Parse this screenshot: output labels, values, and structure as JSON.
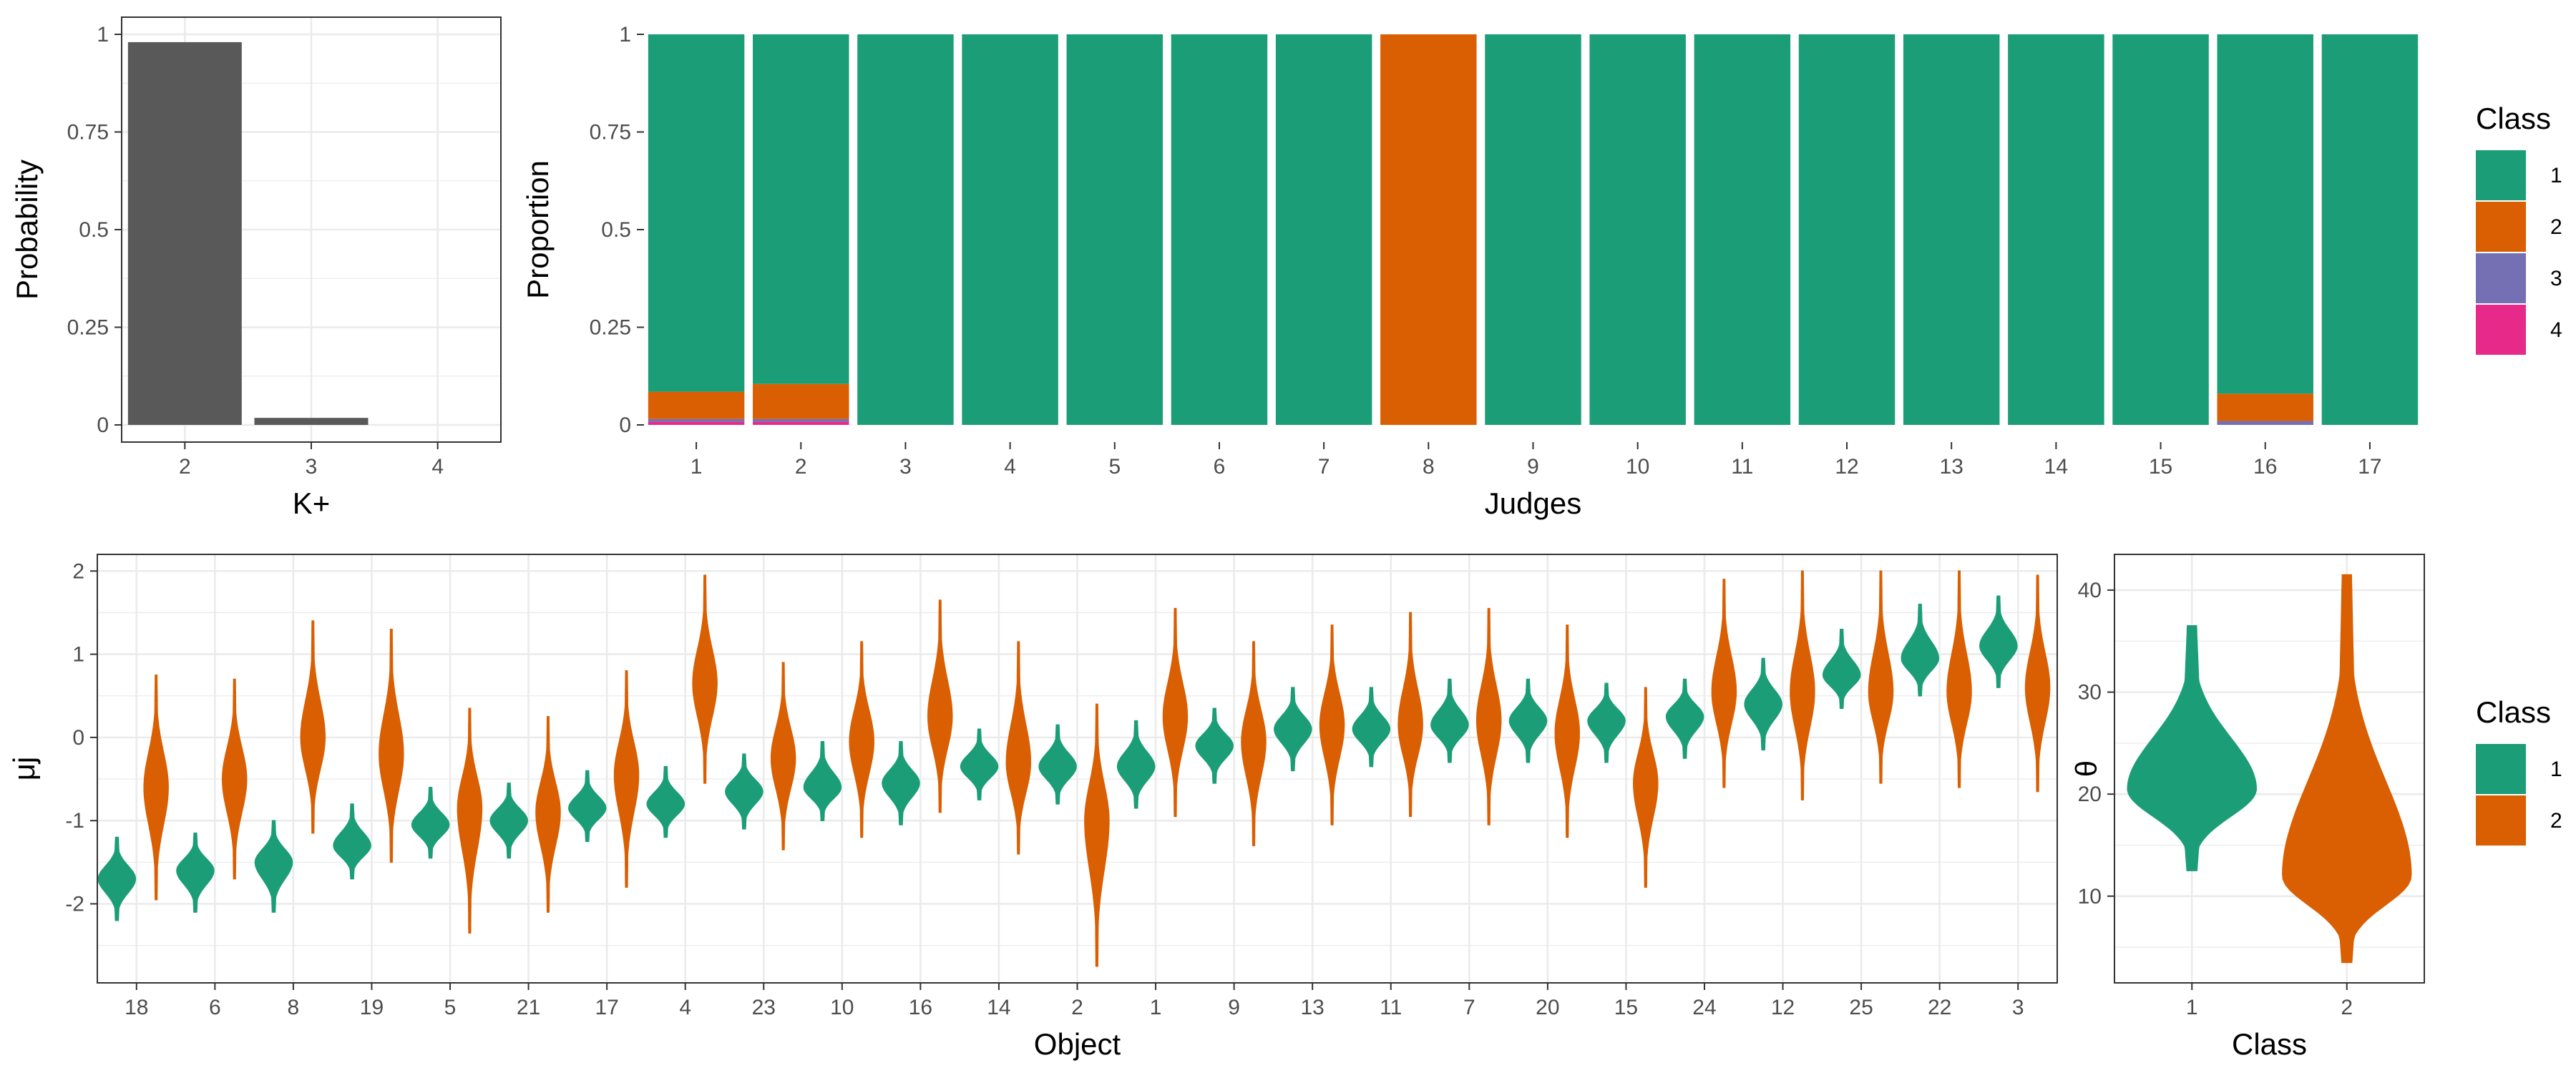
{
  "chart_data": [
    {
      "id": "kplus",
      "type": "bar",
      "xlabel": "K+",
      "ylabel": "Probability",
      "categories": [
        "2",
        "3",
        "4"
      ],
      "values": [
        0.98,
        0.018,
        0.0
      ],
      "ylim": [
        0,
        1
      ],
      "yticks": [
        0,
        0.25,
        0.5,
        0.75,
        1
      ],
      "ytick_labels": [
        "0",
        "0.25",
        "0.5",
        "0.75",
        "1"
      ],
      "grid": true,
      "bar_color": "#595959"
    },
    {
      "id": "judges",
      "type": "bar",
      "stacked": true,
      "xlabel": "Judges",
      "ylabel": "Proportion",
      "categories": [
        "1",
        "2",
        "3",
        "4",
        "5",
        "6",
        "7",
        "8",
        "9",
        "10",
        "11",
        "12",
        "13",
        "14",
        "15",
        "16",
        "17"
      ],
      "series": [
        {
          "name": "1",
          "values": [
            0.915,
            0.895,
            1,
            1,
            1,
            1,
            1,
            0,
            1,
            1,
            1,
            1,
            1,
            1,
            1,
            0.92,
            1
          ]
        },
        {
          "name": "2",
          "values": [
            0.07,
            0.09,
            0,
            0,
            0,
            0,
            0,
            1,
            0,
            0,
            0,
            0,
            0,
            0,
            0,
            0.07,
            0
          ]
        },
        {
          "name": "3",
          "values": [
            0.007,
            0.007,
            0,
            0,
            0,
            0,
            0,
            0,
            0,
            0,
            0,
            0,
            0,
            0,
            0,
            0.01,
            0
          ]
        },
        {
          "name": "4",
          "values": [
            0.008,
            0.008,
            0,
            0,
            0,
            0,
            0,
            0,
            0,
            0,
            0,
            0,
            0,
            0,
            0,
            0,
            0
          ]
        }
      ],
      "ylim": [
        0,
        1
      ],
      "yticks": [
        0,
        0.25,
        0.5,
        0.75,
        1
      ],
      "ytick_labels": [
        "0",
        "0.25",
        "0.5",
        "0.75",
        "1"
      ],
      "grid": false,
      "legend": {
        "title": "Class",
        "placement": "right"
      }
    },
    {
      "id": "objects",
      "type": "violin",
      "xlabel": "Object",
      "ylabel": "μj",
      "categories": [
        "18",
        "6",
        "8",
        "19",
        "5",
        "21",
        "17",
        "4",
        "23",
        "10",
        "16",
        "14",
        "2",
        "1",
        "9",
        "13",
        "11",
        "7",
        "20",
        "15",
        "24",
        "12",
        "25",
        "22",
        "3"
      ],
      "series": [
        {
          "name": "1",
          "center": [
            -1.7,
            -1.6,
            -1.5,
            -1.3,
            -1.05,
            -1.0,
            -0.85,
            -0.8,
            -0.65,
            -0.6,
            -0.55,
            -0.35,
            -0.35,
            -0.35,
            -0.1,
            0.1,
            0.1,
            0.15,
            0.2,
            0.2,
            0.25,
            0.4,
            0.75,
            0.95,
            1.1
          ],
          "min": [
            -2.2,
            -2.1,
            -2.1,
            -1.7,
            -1.45,
            -1.45,
            -1.25,
            -1.2,
            -1.1,
            -1.0,
            -1.05,
            -0.75,
            -0.8,
            -0.85,
            -0.55,
            -0.4,
            -0.35,
            -0.3,
            -0.3,
            -0.3,
            -0.25,
            -0.15,
            0.35,
            0.5,
            0.6
          ],
          "max": [
            -1.2,
            -1.15,
            -1.0,
            -0.8,
            -0.6,
            -0.55,
            -0.4,
            -0.35,
            -0.2,
            -0.05,
            -0.05,
            0.1,
            0.15,
            0.2,
            0.35,
            0.6,
            0.6,
            0.7,
            0.7,
            0.65,
            0.7,
            0.95,
            1.3,
            1.6,
            1.7
          ]
        },
        {
          "name": "2",
          "center": [
            -0.6,
            -0.5,
            0.0,
            -0.2,
            -0.85,
            -0.9,
            -0.45,
            0.65,
            -0.25,
            -0.05,
            0.25,
            -0.3,
            -1.0,
            0.25,
            -0.05,
            0.15,
            0.15,
            0.2,
            0.05,
            -0.55,
            0.55,
            0.55,
            0.55,
            0.55,
            0.6
          ],
          "min": [
            -1.95,
            -1.7,
            -1.15,
            -1.5,
            -2.35,
            -2.1,
            -1.8,
            -0.55,
            -1.35,
            -1.2,
            -0.9,
            -1.4,
            -2.75,
            -0.95,
            -1.3,
            -1.05,
            -0.95,
            -1.05,
            -1.2,
            -1.8,
            -0.6,
            -0.75,
            -0.55,
            -0.6,
            -0.65
          ],
          "max": [
            0.75,
            0.7,
            1.4,
            1.3,
            0.35,
            0.25,
            0.8,
            1.95,
            0.9,
            1.15,
            1.65,
            1.15,
            0.4,
            1.55,
            1.15,
            1.35,
            1.5,
            1.55,
            1.35,
            0.6,
            1.9,
            2.0,
            2.0,
            2.0,
            1.95
          ]
        }
      ],
      "ylim": [
        -2.95,
        2.2
      ],
      "yticks": [
        -2,
        -1,
        0,
        1,
        2
      ],
      "ytick_labels": [
        "-2",
        "-1",
        "0",
        "1",
        "2"
      ],
      "grid": true
    },
    {
      "id": "theta",
      "type": "violin",
      "xlabel": "Class",
      "ylabel": "θ",
      "categories": [
        "1",
        "2"
      ],
      "series": [
        {
          "name": "1",
          "center": 20.5,
          "min": 12.5,
          "max": 36.5
        },
        {
          "name": "2",
          "center": 12.0,
          "min": 3.5,
          "max": 41.5
        }
      ],
      "ylim": [
        1.5,
        43.5
      ],
      "yticks": [
        10,
        20,
        30,
        40
      ],
      "ytick_labels": [
        "10",
        "20",
        "30",
        "40"
      ],
      "grid": true,
      "legend": {
        "title": "Class",
        "placement": "right"
      }
    }
  ],
  "legends": [
    {
      "id": "top",
      "title": "Class",
      "items": [
        {
          "label": "1",
          "color": "#1B9E77"
        },
        {
          "label": "2",
          "color": "#D95F02"
        },
        {
          "label": "3",
          "color": "#7570B3"
        },
        {
          "label": "4",
          "color": "#E7298A"
        }
      ]
    },
    {
      "id": "bottom",
      "title": "Class",
      "items": [
        {
          "label": "1",
          "color": "#1B9E77"
        },
        {
          "label": "2",
          "color": "#D95F02"
        }
      ]
    }
  ],
  "colors": {
    "class1": "#1B9E77",
    "class2": "#D95F02",
    "class3": "#7570B3",
    "class4": "#E7298A",
    "bar": "#595959",
    "grid": "#EBEBEB",
    "panel_border": "#333333"
  }
}
